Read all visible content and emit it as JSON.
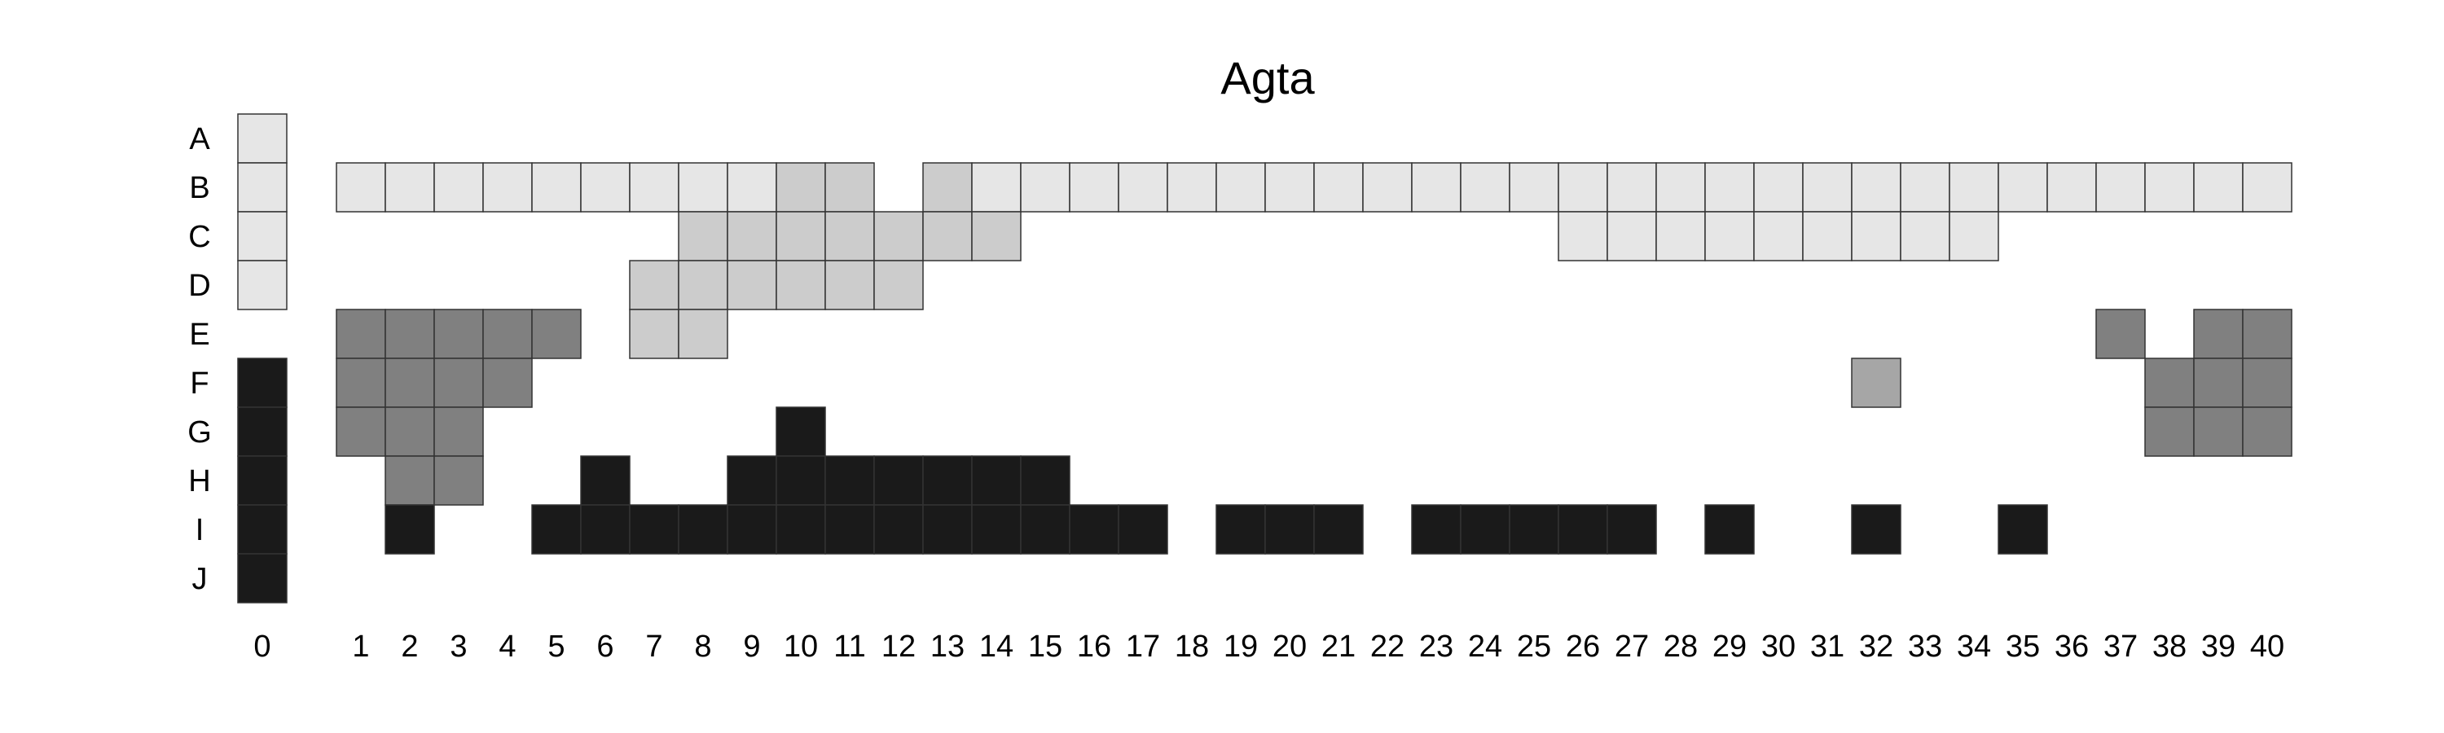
{
  "chart_data": {
    "type": "heatmap",
    "title": "Agta",
    "xlabel": "",
    "ylabel": "",
    "rows": [
      "A",
      "B",
      "C",
      "D",
      "E",
      "F",
      "G",
      "H",
      "I",
      "J"
    ],
    "columns": [
      "0",
      "1",
      "2",
      "3",
      "4",
      "5",
      "6",
      "7",
      "8",
      "9",
      "10",
      "11",
      "12",
      "13",
      "14",
      "15",
      "16",
      "17",
      "18",
      "19",
      "20",
      "21",
      "22",
      "23",
      "24",
      "25",
      "26",
      "27",
      "28",
      "29",
      "30",
      "31",
      "32",
      "33",
      "34",
      "35",
      "36",
      "37",
      "38",
      "39",
      "40"
    ],
    "grid": false,
    "legend": "none",
    "colors": {
      "1": "#e6e6e6",
      "2": "#cccccc",
      "3": "#a6a6a6",
      "4": "#808080",
      "5": "#1a1a1a",
      "border": "#333333"
    },
    "cells": {
      "0": {
        "A": 1,
        "B": 1,
        "C": 1,
        "D": 1,
        "F": 5,
        "G": 5,
        "H": 5,
        "I": 5,
        "J": 5
      },
      "1": {
        "B": 1,
        "E": 4,
        "F": 4,
        "G": 4
      },
      "2": {
        "B": 1,
        "E": 4,
        "F": 4,
        "G": 4,
        "H": 4,
        "I": 5
      },
      "3": {
        "B": 1,
        "E": 4,
        "F": 4,
        "G": 4,
        "H": 4
      },
      "4": {
        "B": 1,
        "E": 4,
        "F": 4
      },
      "5": {
        "B": 1,
        "E": 4,
        "I": 5
      },
      "6": {
        "B": 1,
        "H": 5,
        "I": 5
      },
      "7": {
        "B": 1,
        "D": 2,
        "E": 2,
        "I": 5
      },
      "8": {
        "B": 1,
        "C": 2,
        "D": 2,
        "E": 2,
        "I": 5
      },
      "9": {
        "B": 1,
        "C": 2,
        "D": 2,
        "H": 5,
        "I": 5
      },
      "10": {
        "B": 2,
        "C": 2,
        "D": 2,
        "G": 5,
        "H": 5,
        "I": 5
      },
      "11": {
        "B": 2,
        "C": 2,
        "D": 2,
        "H": 5,
        "I": 5
      },
      "12": {
        "C": 2,
        "D": 2,
        "H": 5,
        "I": 5
      },
      "13": {
        "B": 2,
        "C": 2,
        "H": 5,
        "I": 5
      },
      "14": {
        "B": 1,
        "C": 2,
        "H": 5,
        "I": 5
      },
      "15": {
        "B": 1,
        "H": 5,
        "I": 5
      },
      "16": {
        "B": 1,
        "I": 5
      },
      "17": {
        "B": 1,
        "I": 5
      },
      "18": {
        "B": 1
      },
      "19": {
        "B": 1,
        "I": 5
      },
      "20": {
        "B": 1,
        "I": 5
      },
      "21": {
        "B": 1,
        "I": 5
      },
      "22": {
        "B": 1
      },
      "23": {
        "B": 1,
        "I": 5
      },
      "24": {
        "B": 1,
        "I": 5
      },
      "25": {
        "B": 1,
        "I": 5
      },
      "26": {
        "B": 1,
        "C": 1,
        "I": 5
      },
      "27": {
        "B": 1,
        "C": 1,
        "I": 5
      },
      "28": {
        "B": 1,
        "C": 1
      },
      "29": {
        "B": 1,
        "C": 1,
        "I": 5
      },
      "30": {
        "B": 1,
        "C": 1
      },
      "31": {
        "B": 1,
        "C": 1
      },
      "32": {
        "B": 1,
        "C": 1,
        "F": 3,
        "I": 5
      },
      "33": {
        "B": 1,
        "C": 1
      },
      "34": {
        "B": 1,
        "C": 1
      },
      "35": {
        "B": 1,
        "I": 5
      },
      "36": {
        "B": 1
      },
      "37": {
        "B": 1,
        "E": 4
      },
      "38": {
        "B": 1,
        "F": 4,
        "G": 4
      },
      "39": {
        "B": 1,
        "E": 4,
        "F": 4,
        "G": 4
      },
      "40": {
        "B": 1,
        "E": 4,
        "F": 4,
        "G": 4
      }
    }
  }
}
